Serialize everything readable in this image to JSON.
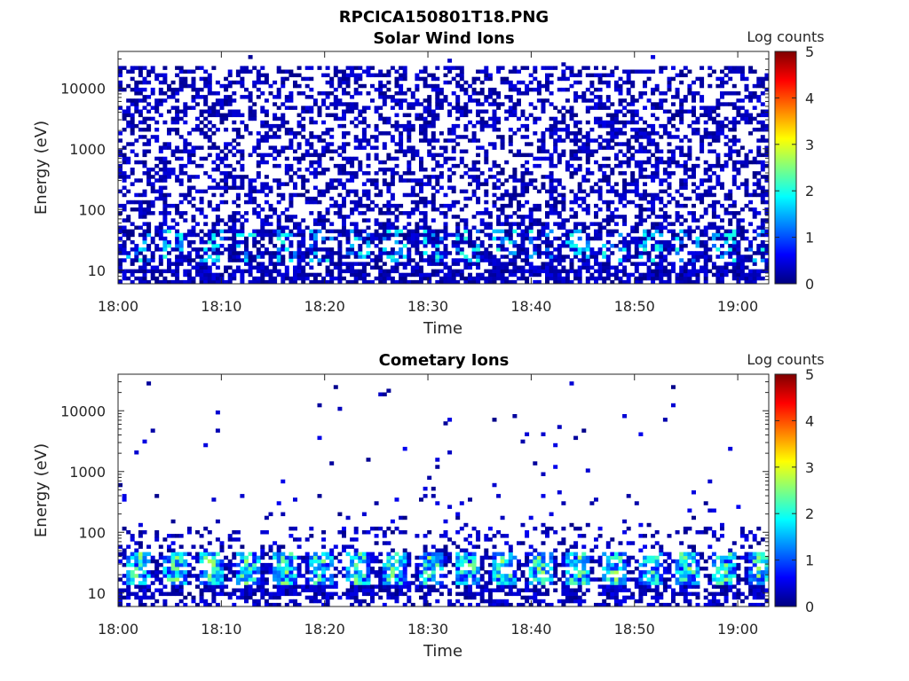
{
  "figure": {
    "title": "RPCICA150801T18.PNG"
  },
  "chart_data": [
    {
      "type": "heatmap",
      "title": "Solar Wind Ions",
      "xlabel": "Time",
      "ylabel": "Energy (eV)",
      "x_range": [
        "18:00",
        "19:03"
      ],
      "x_ticks": [
        "18:00",
        "18:10",
        "18:20",
        "18:30",
        "18:40",
        "18:50",
        "19:00"
      ],
      "y_scale": "log",
      "y_range": [
        6,
        40000
      ],
      "y_ticks": [
        10,
        100,
        1000,
        10000
      ],
      "y_tick_labels": [
        "10",
        "100",
        "1000",
        "10000"
      ],
      "colorbar": {
        "label": "Log counts",
        "range": [
          0,
          5
        ],
        "ticks": [
          "0",
          "1",
          "2",
          "3",
          "4",
          "5"
        ],
        "colormap": "jet"
      },
      "grid": false
    },
    {
      "type": "heatmap",
      "title": "Cometary Ions",
      "xlabel": "Time",
      "ylabel": "Energy (eV)",
      "x_range": [
        "18:00",
        "19:03"
      ],
      "x_ticks": [
        "18:00",
        "18:10",
        "18:20",
        "18:30",
        "18:40",
        "18:50",
        "19:00"
      ],
      "y_scale": "log",
      "y_range": [
        6,
        40000
      ],
      "y_ticks": [
        10,
        100,
        1000,
        10000
      ],
      "y_tick_labels": [
        "10",
        "100",
        "1000",
        "10000"
      ],
      "colorbar": {
        "label": "Log counts",
        "range": [
          0,
          5
        ],
        "ticks": [
          "0",
          "1",
          "2",
          "3",
          "4",
          "5"
        ],
        "colormap": "jet"
      },
      "grid": false
    }
  ]
}
